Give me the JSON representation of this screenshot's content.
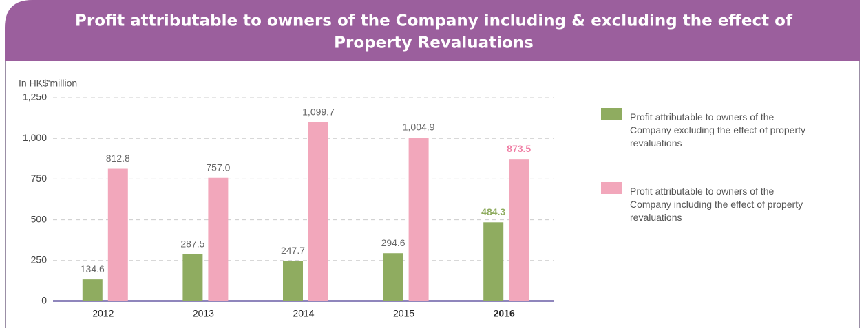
{
  "chart_data": {
    "type": "bar",
    "title": [
      "Profit attributable to owners of the Company including & excluding the effect of",
      "Property Revaluations"
    ],
    "y_label": "In HK$'million",
    "categories": [
      "2012",
      "2013",
      "2014",
      "2015",
      "2016"
    ],
    "series": [
      {
        "name": "Profit attributable to owners of the Company excluding the effect of property revaluations",
        "color": "#8fac60",
        "values": [
          134.6,
          287.5,
          247.7,
          294.6,
          484.3
        ],
        "value_labels": [
          "134.6",
          "287.5",
          "247.7",
          "294.6",
          "484.3"
        ]
      },
      {
        "name": "Profit attributable to owners of the Company including the effect of property revaluations",
        "color": "#f2a7bb",
        "values": [
          812.8,
          757.0,
          1099.7,
          1004.9,
          873.5
        ],
        "value_labels": [
          "812.8",
          "757.0",
          "1,099.7",
          "1,004.9",
          "873.5"
        ]
      }
    ],
    "ylim": [
      0,
      1250
    ],
    "yticks": [
      0,
      250,
      500,
      750,
      {
        "value": 1000,
        "label": "1,000"
      },
      {
        "value": 1250,
        "label": "1,250"
      }
    ],
    "grid": true,
    "legend": "right"
  }
}
